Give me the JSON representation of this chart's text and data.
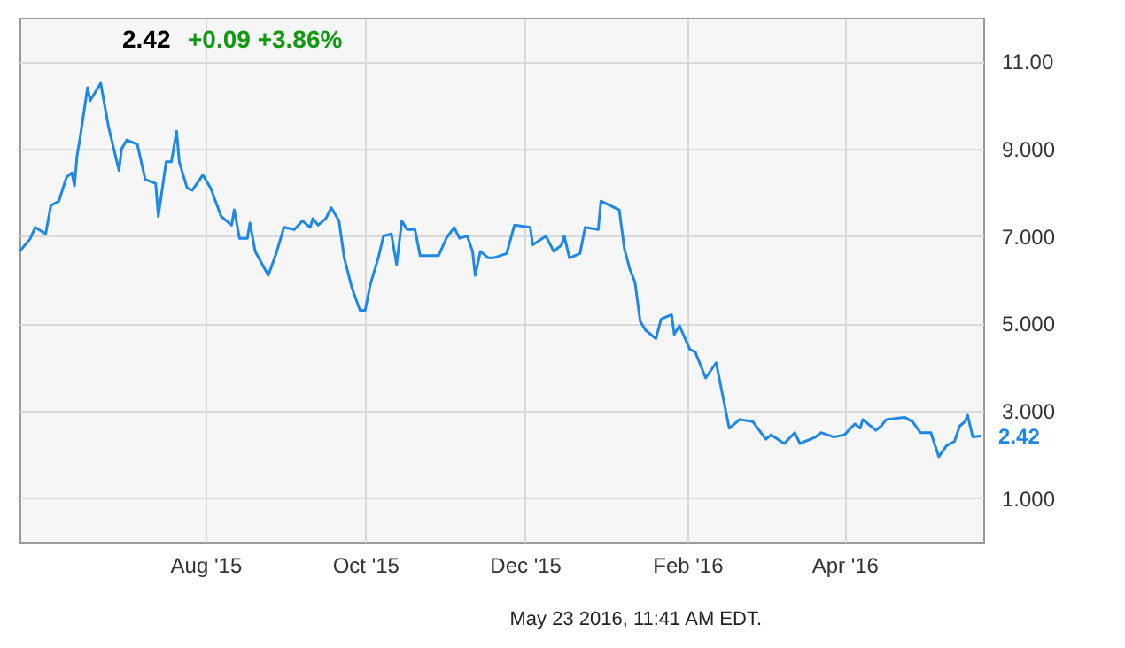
{
  "chart_data": {
    "type": "line",
    "title": "2.42",
    "subtitle": "+0.09  +3.86%",
    "x": [
      "2015-05-22",
      "2015-05-26",
      "2015-05-28",
      "2015-06-01",
      "2015-06-03",
      "2015-06-06",
      "2015-06-09",
      "2015-06-11",
      "2015-06-12",
      "2015-06-13",
      "2015-06-14",
      "2015-06-17",
      "2015-06-18",
      "2015-06-22",
      "2015-06-25",
      "2015-06-29",
      "2015-06-30",
      "2015-07-02",
      "2015-07-06",
      "2015-07-09",
      "2015-07-13",
      "2015-07-14",
      "2015-07-17",
      "2015-07-19",
      "2015-07-21",
      "2015-07-22",
      "2015-07-25",
      "2015-07-27",
      "2015-07-31",
      "2015-08-03",
      "2015-08-07",
      "2015-08-11",
      "2015-08-12",
      "2015-08-14",
      "2015-08-17",
      "2015-08-18",
      "2015-08-20",
      "2015-08-25",
      "2015-08-28",
      "2015-08-31",
      "2015-09-04",
      "2015-09-07",
      "2015-09-10",
      "2015-09-11",
      "2015-09-13",
      "2015-09-16",
      "2015-09-18",
      "2015-09-21",
      "2015-09-23",
      "2015-09-26",
      "2015-09-29",
      "2015-10-01",
      "2015-10-03",
      "2015-10-06",
      "2015-10-08",
      "2015-10-11",
      "2015-10-13",
      "2015-10-15",
      "2015-10-17",
      "2015-10-20",
      "2015-10-22",
      "2015-10-24",
      "2015-10-29",
      "2015-11-01",
      "2015-11-04",
      "2015-11-06",
      "2015-11-09",
      "2015-11-11",
      "2015-11-12",
      "2015-11-14",
      "2015-11-17",
      "2015-11-19",
      "2015-11-24",
      "2015-11-27",
      "2015-12-03",
      "2015-12-04",
      "2015-12-09",
      "2015-12-12",
      "2015-12-15",
      "2015-12-16",
      "2015-12-18",
      "2015-12-22",
      "2015-12-24",
      "2015-12-29",
      "2015-12-30",
      "2016-01-06",
      "2016-01-08",
      "2016-01-10",
      "2016-01-12",
      "2016-01-14",
      "2016-01-16",
      "2016-01-20",
      "2016-01-22",
      "2016-01-26",
      "2016-01-27",
      "2016-01-29",
      "2016-02-02",
      "2016-02-04",
      "2016-02-08",
      "2016-02-12",
      "2016-02-17",
      "2016-02-19",
      "2016-02-21",
      "2016-02-26",
      "2016-03-02",
      "2016-03-04",
      "2016-03-09",
      "2016-03-13",
      "2016-03-15",
      "2016-03-21",
      "2016-03-23",
      "2016-03-28",
      "2016-04-01",
      "2016-04-05",
      "2016-04-07",
      "2016-04-08",
      "2016-04-13",
      "2016-04-15",
      "2016-04-17",
      "2016-04-24",
      "2016-04-27",
      "2016-04-30",
      "2016-05-04",
      "2016-05-07",
      "2016-05-10",
      "2016-05-13",
      "2016-05-15",
      "2016-05-17",
      "2016-05-18",
      "2016-05-20",
      "2016-05-23"
    ],
    "values": [
      6.65,
      6.93,
      7.2,
      7.05,
      7.7,
      7.8,
      8.35,
      8.45,
      8.15,
      8.85,
      9.2,
      10.4,
      10.1,
      10.5,
      9.5,
      8.5,
      9.0,
      9.2,
      9.1,
      8.3,
      8.2,
      7.45,
      8.7,
      8.7,
      9.4,
      8.7,
      8.1,
      8.05,
      8.4,
      8.1,
      7.45,
      7.25,
      7.6,
      6.95,
      6.95,
      7.3,
      6.65,
      6.1,
      6.6,
      7.2,
      7.15,
      7.35,
      7.2,
      7.4,
      7.25,
      7.4,
      7.65,
      7.35,
      6.5,
      5.8,
      5.3,
      5.3,
      5.9,
      6.5,
      7.0,
      7.05,
      6.35,
      7.35,
      7.15,
      7.15,
      6.55,
      6.55,
      6.55,
      6.95,
      7.2,
      6.95,
      7.0,
      6.65,
      6.1,
      6.65,
      6.5,
      6.5,
      6.6,
      7.25,
      7.2,
      6.8,
      7.0,
      6.65,
      6.8,
      7.0,
      6.5,
      6.6,
      7.2,
      7.15,
      7.8,
      7.6,
      6.7,
      6.25,
      5.95,
      5.05,
      4.85,
      4.65,
      5.1,
      5.2,
      4.75,
      4.95,
      4.4,
      4.35,
      3.75,
      4.1,
      2.6,
      2.7,
      2.8,
      2.75,
      2.35,
      2.45,
      2.25,
      2.5,
      2.25,
      2.4,
      2.5,
      2.4,
      2.45,
      2.7,
      2.6,
      2.8,
      2.55,
      2.65,
      2.8,
      2.85,
      2.75,
      2.5,
      2.5,
      1.95,
      2.2,
      2.3,
      2.65,
      2.75,
      2.9,
      2.4,
      2.42
    ],
    "color": "#1e88e5",
    "xlim": [
      "2015-05-22",
      "2016-05-24"
    ],
    "xticks": [
      {
        "value": "2015-08-01",
        "label": "Aug '15"
      },
      {
        "value": "2015-10-01",
        "label": "Oct '15"
      },
      {
        "value": "2015-12-01",
        "label": "Dec '15"
      },
      {
        "value": "2016-02-01",
        "label": "Feb '16"
      },
      {
        "value": "2016-04-01",
        "label": "Apr '16"
      }
    ],
    "ylim": [
      0,
      12
    ],
    "yticks": [
      {
        "value": 1,
        "label": "1.000"
      },
      {
        "value": 3,
        "label": "3.000"
      },
      {
        "value": 5,
        "label": "5.000"
      },
      {
        "value": 7,
        "label": "7.000"
      },
      {
        "value": 9,
        "label": "9.000"
      },
      {
        "value": 11,
        "label": "11.00"
      }
    ],
    "grid": true,
    "annotations": [
      {
        "text": "2.42",
        "x": "2016-05-23",
        "y": 2.42
      },
      "May 23 2016, 11:41 AM EDT."
    ]
  }
}
